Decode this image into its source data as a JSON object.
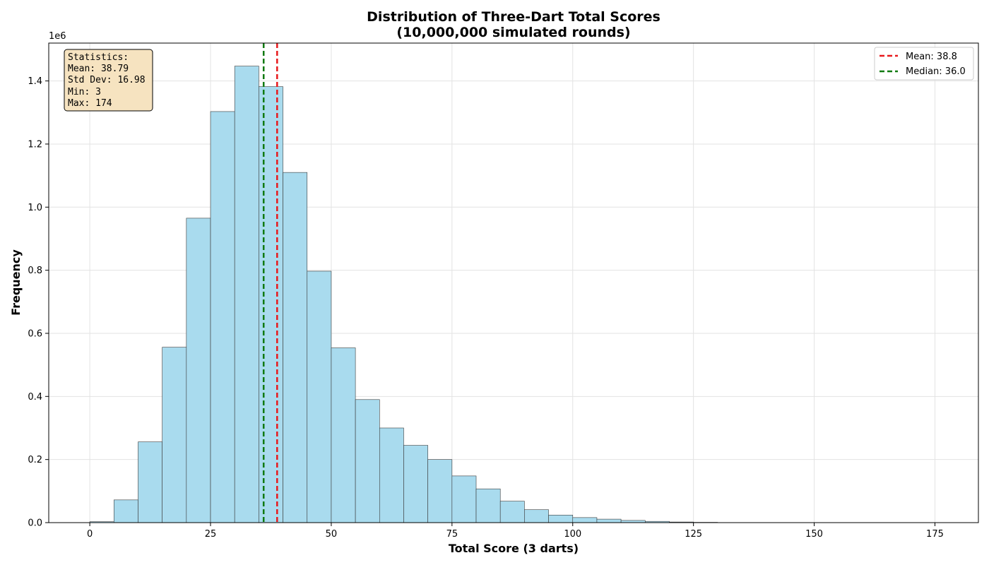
{
  "chart_data": {
    "type": "bar",
    "title": "Distribution of Three-Dart Total Scores",
    "subtitle": "(10,000,000 simulated rounds)",
    "xlabel": "Total Score (3 darts)",
    "ylabel": "Frequency",
    "y_scale_label": "1e6",
    "xlim": [
      -8.5,
      184
    ],
    "ylim": [
      0,
      1520000
    ],
    "grid": true,
    "bin_width": 5,
    "bins": [
      {
        "start": 0,
        "end": 5,
        "value": 3000
      },
      {
        "start": 5,
        "end": 10,
        "value": 72000
      },
      {
        "start": 10,
        "end": 15,
        "value": 256000
      },
      {
        "start": 15,
        "end": 20,
        "value": 556000
      },
      {
        "start": 20,
        "end": 25,
        "value": 965000
      },
      {
        "start": 25,
        "end": 30,
        "value": 1303000
      },
      {
        "start": 30,
        "end": 35,
        "value": 1447000
      },
      {
        "start": 35,
        "end": 40,
        "value": 1382000
      },
      {
        "start": 40,
        "end": 45,
        "value": 1110000
      },
      {
        "start": 45,
        "end": 50,
        "value": 797000
      },
      {
        "start": 50,
        "end": 55,
        "value": 554000
      },
      {
        "start": 55,
        "end": 60,
        "value": 390000
      },
      {
        "start": 60,
        "end": 65,
        "value": 300000
      },
      {
        "start": 65,
        "end": 70,
        "value": 245000
      },
      {
        "start": 70,
        "end": 75,
        "value": 200000
      },
      {
        "start": 75,
        "end": 80,
        "value": 148000
      },
      {
        "start": 80,
        "end": 85,
        "value": 107000
      },
      {
        "start": 85,
        "end": 90,
        "value": 68000
      },
      {
        "start": 90,
        "end": 95,
        "value": 41000
      },
      {
        "start": 95,
        "end": 100,
        "value": 24000
      },
      {
        "start": 100,
        "end": 105,
        "value": 16000
      },
      {
        "start": 105,
        "end": 110,
        "value": 11000
      },
      {
        "start": 110,
        "end": 115,
        "value": 7000
      },
      {
        "start": 115,
        "end": 120,
        "value": 4000
      },
      {
        "start": 120,
        "end": 125,
        "value": 2000
      },
      {
        "start": 125,
        "end": 130,
        "value": 1000
      },
      {
        "start": 130,
        "end": 135,
        "value": 400
      },
      {
        "start": 135,
        "end": 140,
        "value": 200
      },
      {
        "start": 140,
        "end": 145,
        "value": 100
      },
      {
        "start": 145,
        "end": 150,
        "value": 50
      },
      {
        "start": 150,
        "end": 155,
        "value": 20
      },
      {
        "start": 155,
        "end": 160,
        "value": 10
      },
      {
        "start": 160,
        "end": 165,
        "value": 5
      },
      {
        "start": 165,
        "end": 170,
        "value": 2
      },
      {
        "start": 170,
        "end": 175,
        "value": 1
      }
    ],
    "x_ticks": [
      0,
      25,
      50,
      75,
      100,
      125,
      150,
      175
    ],
    "x_tick_labels": [
      "0",
      "25",
      "50",
      "75",
      "100",
      "125",
      "150",
      "175"
    ],
    "y_ticks": [
      0,
      200000,
      400000,
      600000,
      800000,
      1000000,
      1200000,
      1400000
    ],
    "y_tick_labels": [
      "0.0",
      "0.2",
      "0.4",
      "0.6",
      "0.8",
      "1.0",
      "1.2",
      "1.4"
    ],
    "mean_line": {
      "value": 38.79,
      "label": "Mean: 38.8",
      "color": "#e8191c"
    },
    "median_line": {
      "value": 36.0,
      "label": "Median: 36.0",
      "color": "#107a10"
    },
    "legend_position": "top-right",
    "stats_box": {
      "lines": [
        "Statistics:",
        "Mean: 38.79",
        "Std Dev: 16.98",
        "Min: 3",
        "Max: 174"
      ],
      "position": "top-left"
    },
    "colors": {
      "bar_fill": "#a9dbee",
      "bar_edge": "#3a3a3a",
      "stats_box_fill": "#f6e3c0"
    }
  }
}
